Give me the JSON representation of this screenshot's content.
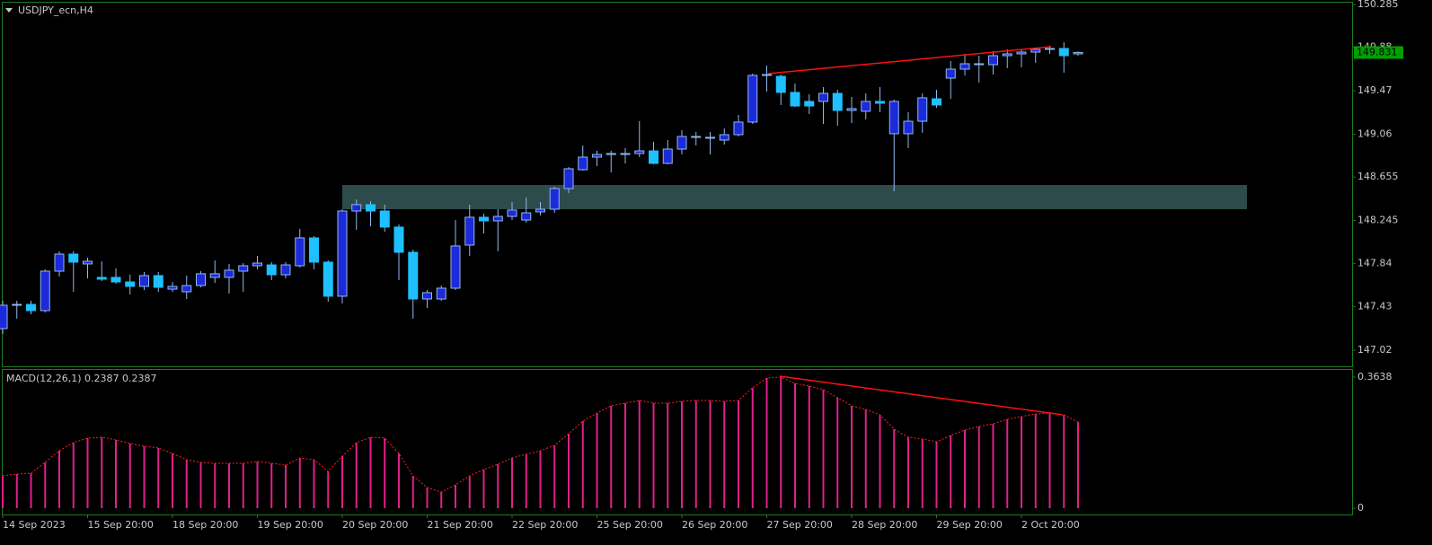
{
  "chart_data": [
    {
      "type": "candlestick",
      "title": "USDJPY_ecn,H4",
      "categories": [
        "14 Sep 2023",
        null,
        null,
        null,
        null,
        null,
        "15 Sep 20:00",
        null,
        null,
        null,
        null,
        null,
        "18 Sep 20:00",
        null,
        null,
        null,
        null,
        null,
        "19 Sep 20:00",
        null,
        null,
        null,
        null,
        null,
        "20 Sep 20:00",
        null,
        null,
        null,
        null,
        null,
        "21 Sep 20:00",
        null,
        null,
        null,
        null,
        null,
        "22 Sep 20:00",
        null,
        null,
        null,
        null,
        null,
        "25 Sep 20:00",
        null,
        null,
        null,
        null,
        null,
        "26 Sep 20:00",
        null,
        null,
        null,
        null,
        null,
        "27 Sep 20:00",
        null,
        null,
        null,
        null,
        null,
        "28 Sep 20:00",
        null,
        null,
        null,
        null,
        null,
        "29 Sep 20:00",
        null,
        null,
        null,
        null,
        null,
        "2 Oct 20:00",
        null,
        null,
        null,
        null
      ],
      "open": [
        147.223,
        147.444,
        147.452,
        147.393,
        147.766,
        147.927,
        147.834,
        147.707,
        147.707,
        147.664,
        147.622,
        147.724,
        147.596,
        147.571,
        147.63,
        147.707,
        147.707,
        147.766,
        147.817,
        147.825,
        147.732,
        147.817,
        148.08,
        147.851,
        147.529,
        148.334,
        148.394,
        148.334,
        148.182,
        147.944,
        147.503,
        147.503,
        147.605,
        148.012,
        148.275,
        148.241,
        148.283,
        148.249,
        148.326,
        148.351,
        148.546,
        148.724,
        148.843,
        148.868,
        148.868,
        148.877,
        148.902,
        148.784,
        148.919,
        149.03,
        149.021,
        149.004,
        149.055,
        149.174,
        149.615,
        149.606,
        149.454,
        149.369,
        149.369,
        149.445,
        149.284,
        149.276,
        149.369,
        149.064,
        149.064,
        149.182,
        149.394,
        149.589,
        149.674,
        149.716,
        149.716,
        149.801,
        149.818,
        149.835,
        149.861,
        149.869,
        149.818
      ],
      "high": [
        147.486,
        147.486,
        147.486,
        147.783,
        147.953,
        147.953,
        147.893,
        147.859,
        147.792,
        147.732,
        147.758,
        147.758,
        147.664,
        147.724,
        147.766,
        147.868,
        147.834,
        147.842,
        147.91,
        147.851,
        147.851,
        148.165,
        148.097,
        147.868,
        148.351,
        148.444,
        148.428,
        148.394,
        148.207,
        147.97,
        147.588,
        147.63,
        148.249,
        148.394,
        148.309,
        148.351,
        148.419,
        148.461,
        148.419,
        148.563,
        148.75,
        148.953,
        148.902,
        148.902,
        148.928,
        149.182,
        148.987,
        149.004,
        149.097,
        149.08,
        149.08,
        149.114,
        149.242,
        149.632,
        149.708,
        149.623,
        149.538,
        149.437,
        149.504,
        149.479,
        149.411,
        149.445,
        149.504,
        149.386,
        149.267,
        149.445,
        149.479,
        149.75,
        149.818,
        149.801,
        149.844,
        149.861,
        149.861,
        149.878,
        149.895,
        149.928,
        149.84
      ],
      "low": [
        147.172,
        147.317,
        147.359,
        147.376,
        147.715,
        147.571,
        147.698,
        147.673,
        147.647,
        147.546,
        147.588,
        147.571,
        147.571,
        147.503,
        147.613,
        147.656,
        147.554,
        147.571,
        147.783,
        147.681,
        147.698,
        147.8,
        147.783,
        147.478,
        147.461,
        148.156,
        148.19,
        148.139,
        147.681,
        147.317,
        147.418,
        147.486,
        147.588,
        147.91,
        148.122,
        147.953,
        148.249,
        148.224,
        148.292,
        148.317,
        148.504,
        148.716,
        148.758,
        148.699,
        148.784,
        148.843,
        148.775,
        148.775,
        148.868,
        148.953,
        148.868,
        148.962,
        149.038,
        149.157,
        149.462,
        149.335,
        149.318,
        149.25,
        149.157,
        149.14,
        149.165,
        149.199,
        149.267,
        148.521,
        148.928,
        149.072,
        149.309,
        149.394,
        149.615,
        149.547,
        149.623,
        149.683,
        149.691,
        149.733,
        149.818,
        149.64,
        149.801
      ],
      "close": [
        147.444,
        147.452,
        147.393,
        147.766,
        147.927,
        147.851,
        147.859,
        147.69,
        147.664,
        147.622,
        147.724,
        147.613,
        147.622,
        147.63,
        147.741,
        147.741,
        147.775,
        147.817,
        147.842,
        147.732,
        147.825,
        148.08,
        147.851,
        147.529,
        148.334,
        148.394,
        148.334,
        148.182,
        147.944,
        147.503,
        147.563,
        147.605,
        148.004,
        148.275,
        148.241,
        148.283,
        148.343,
        148.317,
        148.351,
        148.546,
        148.733,
        148.843,
        148.868,
        148.877,
        148.877,
        148.902,
        148.784,
        148.919,
        149.038,
        149.038,
        149.03,
        149.055,
        149.174,
        149.615,
        149.623,
        149.454,
        149.326,
        149.326,
        149.445,
        149.284,
        149.301,
        149.369,
        149.352,
        149.369,
        149.182,
        149.403,
        149.335,
        149.674,
        149.725,
        149.725,
        149.801,
        149.818,
        149.835,
        149.861,
        149.869,
        149.801,
        149.831
      ],
      "up_color": "#1c2ad8",
      "down_color": "#1ec0ff",
      "wick_color": "#8fb8ee",
      "ylim": [
        146.867,
        150.31
      ],
      "yticks": [
        150.285,
        149.88,
        149.47,
        149.06,
        148.655,
        148.245,
        147.84,
        147.43,
        147.02
      ],
      "zone": [
        148.351,
        148.58
      ],
      "current_price": 149.831
    },
    {
      "type": "bar",
      "title": "MACD(12,26,1) 0.2387 0.2387",
      "values": [
        0.0897,
        0.0947,
        0.0972,
        0.1271,
        0.1595,
        0.1819,
        0.1944,
        0.1969,
        0.1894,
        0.1794,
        0.1719,
        0.167,
        0.152,
        0.1346,
        0.1271,
        0.1246,
        0.1246,
        0.1246,
        0.1296,
        0.1246,
        0.1196,
        0.1396,
        0.1346,
        0.1022,
        0.1445,
        0.1819,
        0.1969,
        0.1944,
        0.152,
        0.0897,
        0.0573,
        0.0449,
        0.0648,
        0.0897,
        0.1072,
        0.1221,
        0.1396,
        0.1495,
        0.1595,
        0.1744,
        0.2068,
        0.2417,
        0.2642,
        0.2841,
        0.2916,
        0.299,
        0.2916,
        0.2916,
        0.2965,
        0.299,
        0.299,
        0.2965,
        0.299,
        0.3339,
        0.3613,
        0.3638,
        0.3464,
        0.3389,
        0.3289,
        0.3065,
        0.2841,
        0.2741,
        0.2592,
        0.2193,
        0.1969,
        0.1919,
        0.1844,
        0.2019,
        0.2168,
        0.2268,
        0.2342,
        0.2467,
        0.2542,
        0.2617,
        0.2642,
        0.2592,
        0.2387
      ],
      "color": "#e0208a",
      "signal_color": "#ff2020",
      "ylim": [
        -0.0174,
        0.3862
      ],
      "yticks": [
        0.3638,
        0
      ]
    }
  ]
}
